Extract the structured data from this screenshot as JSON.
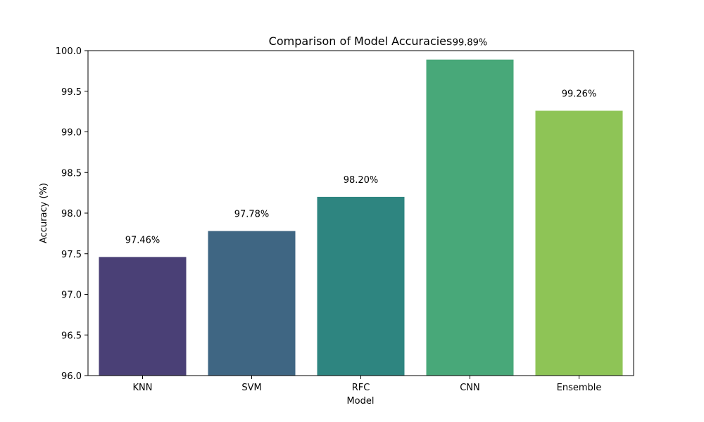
{
  "chart_data": {
    "type": "bar",
    "title": "Comparison of Model Accuracies",
    "xlabel": "Model",
    "ylabel": "Accuracy (%)",
    "categories": [
      "KNN",
      "SVM",
      "RFC",
      "CNN",
      "Ensemble"
    ],
    "values": [
      97.46,
      97.78,
      98.2,
      99.89,
      99.26
    ],
    "data_labels": [
      "97.46%",
      "97.78%",
      "98.20%",
      "99.89%",
      "99.26%"
    ],
    "colors": [
      "#4a4076",
      "#3f6683",
      "#2e8580",
      "#48a879",
      "#8ec456"
    ],
    "ylim": [
      96.0,
      100.0
    ],
    "yticks": [
      "96.0",
      "96.5",
      "97.0",
      "97.5",
      "98.0",
      "98.5",
      "99.0",
      "99.5",
      "100.0"
    ],
    "grid": false,
    "legend": "none"
  }
}
